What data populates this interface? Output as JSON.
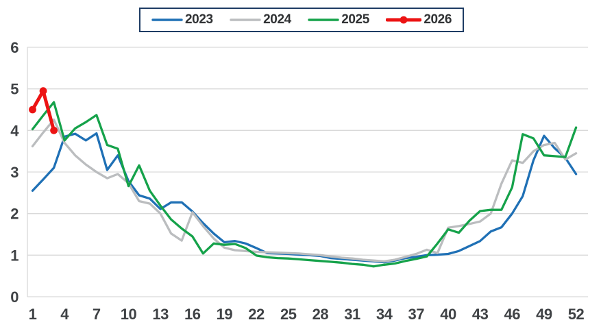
{
  "chart_data": {
    "type": "line",
    "title": "",
    "xlabel": "",
    "ylabel": "",
    "x_unit": "week",
    "x_ticks": [
      1,
      4,
      7,
      10,
      13,
      16,
      19,
      22,
      25,
      28,
      31,
      34,
      37,
      40,
      43,
      46,
      49,
      52
    ],
    "y_ticks": [
      0,
      1,
      2,
      3,
      4,
      5,
      6
    ],
    "xlim": [
      1,
      52
    ],
    "ylim": [
      0,
      6
    ],
    "grid": true,
    "legend_position": "top-center",
    "legend_border_color": "#1e3c64",
    "grid_color": "#d9d9d9",
    "axis_label_color": "#3f4245",
    "series": [
      {
        "name": "2023",
        "color": "#1f70b5",
        "marker": "none",
        "x_start": 1,
        "values": [
          2.55,
          2.82,
          3.1,
          3.85,
          3.92,
          3.76,
          3.93,
          3.05,
          3.4,
          2.78,
          2.44,
          2.36,
          2.11,
          2.27,
          2.27,
          2.05,
          1.77,
          1.52,
          1.31,
          1.34,
          1.28,
          1.17,
          1.05,
          1.04,
          1.03,
          1.01,
          1.0,
          0.98,
          0.93,
          0.91,
          0.89,
          0.87,
          0.85,
          0.83,
          0.87,
          0.93,
          0.96,
          1.0,
          1.01,
          1.03,
          1.1,
          1.22,
          1.34,
          1.57,
          1.67,
          2.0,
          2.42,
          3.28,
          3.87,
          3.57,
          3.34,
          2.95
        ]
      },
      {
        "name": "2024",
        "color": "#bbbdbf",
        "marker": "none",
        "x_start": 1,
        "values": [
          3.62,
          3.95,
          4.26,
          3.7,
          3.4,
          3.18,
          3.0,
          2.85,
          2.95,
          2.73,
          2.3,
          2.24,
          2.0,
          1.52,
          1.35,
          2.03,
          1.7,
          1.4,
          1.18,
          1.12,
          1.1,
          1.08,
          1.07,
          1.06,
          1.05,
          1.04,
          1.02,
          1.0,
          0.97,
          0.94,
          0.92,
          0.89,
          0.87,
          0.85,
          0.89,
          0.96,
          1.03,
          1.13,
          1.05,
          1.66,
          1.7,
          1.75,
          1.81,
          2.0,
          2.72,
          3.28,
          3.22,
          3.5,
          3.65,
          3.7,
          3.3,
          3.45
        ]
      },
      {
        "name": "2025",
        "color": "#15a24a",
        "marker": "none",
        "x_start": 1,
        "values": [
          4.03,
          4.36,
          4.68,
          3.76,
          4.05,
          4.2,
          4.37,
          3.65,
          3.56,
          2.66,
          3.16,
          2.55,
          2.19,
          1.86,
          1.64,
          1.45,
          1.04,
          1.28,
          1.25,
          1.27,
          1.17,
          0.99,
          0.95,
          0.93,
          0.92,
          0.9,
          0.88,
          0.86,
          0.84,
          0.82,
          0.79,
          0.77,
          0.73,
          0.77,
          0.8,
          0.86,
          0.91,
          0.97,
          1.28,
          1.62,
          1.54,
          1.83,
          2.06,
          2.09,
          2.09,
          2.63,
          3.91,
          3.81,
          3.4,
          3.38,
          3.36,
          4.07
        ]
      },
      {
        "name": "2026",
        "color": "#ec1313",
        "marker": "circle",
        "x_start": 1,
        "values": [
          4.5,
          4.95,
          4.0
        ]
      }
    ]
  }
}
